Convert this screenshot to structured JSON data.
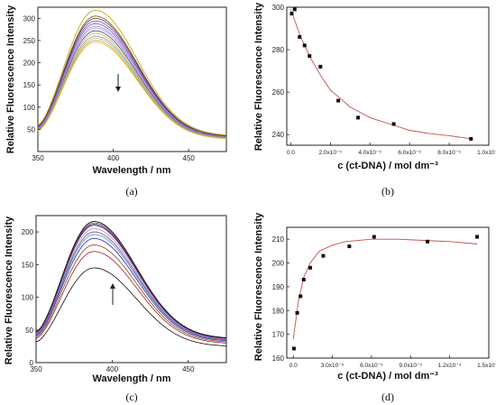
{
  "chart_data": [
    {
      "panel": "(a)",
      "type": "line",
      "xlabel": "Wavelength / nm",
      "ylabel": "Relative Fluorescence Intensity",
      "xlim": [
        350,
        475
      ],
      "ylim": [
        0,
        325
      ],
      "xticks": [
        350,
        400,
        450
      ],
      "yticks": [
        50,
        100,
        150,
        200,
        250,
        300
      ],
      "grid": false,
      "annotation": "arrow pointing down",
      "peak_x": 388,
      "series_peaks": [
        318,
        305,
        300,
        294,
        288,
        282,
        278,
        272,
        266,
        260,
        255,
        250,
        246
      ],
      "series_colors": [
        "#b8a000",
        "#8b4513",
        "#3a3a3a",
        "#7b3fa0",
        "#5a5ad0",
        "#c080c0",
        "#a0a0ff",
        "#404080",
        "#e0b040",
        "#909090",
        "#80c0c0",
        "#d0a020",
        "#f0c040"
      ]
    },
    {
      "panel": "(b)",
      "type": "scatter",
      "xlabel": "c (ct-DNA) / mol dm⁻³",
      "ylabel": "Relative Fluorescence Intensity",
      "xlim": [
        -2e-06,
        0.0001
      ],
      "ylim": [
        235,
        300
      ],
      "xticks": [
        0,
        2e-05,
        4e-05,
        6e-05,
        8e-05,
        0.0001
      ],
      "xtick_labels": [
        "0.0",
        "2.0x10⁻⁵",
        "4.0x10⁻⁵",
        "6.0x10⁻⁵",
        "8.0x10⁻⁵",
        "1.0x10⁻⁴"
      ],
      "yticks": [
        240,
        260,
        280,
        300
      ],
      "grid": false,
      "x": [
        5e-07,
        2e-06,
        4.5e-06,
        7e-06,
        9.5e-06,
        1.5e-05,
        2.4e-05,
        3.4e-05,
        5.2e-05,
        9.1e-05
      ],
      "y": [
        297,
        299,
        286,
        282,
        277,
        272,
        256,
        248,
        245,
        238
      ],
      "fit_x": [
        0,
        5e-06,
        1e-05,
        1.5e-05,
        2e-05,
        3e-05,
        4e-05,
        5e-05,
        6e-05,
        7e-05,
        8e-05,
        9.1e-05
      ],
      "fit_y": [
        299,
        286,
        276,
        268,
        261,
        253,
        248,
        245,
        242,
        240.5,
        239.5,
        238
      ],
      "marker_color": "#111111",
      "fit_color": "#c0504d"
    },
    {
      "panel": "(c)",
      "type": "line",
      "xlabel": "Wavelength / nm",
      "ylabel": "Relative Fluorescence Intensity",
      "xlim": [
        350,
        475
      ],
      "ylim": [
        0,
        225
      ],
      "xticks": [
        350,
        400,
        450
      ],
      "yticks": [
        0,
        50,
        100,
        150,
        200
      ],
      "grid": false,
      "annotation": "arrow pointing up",
      "peak_x": 388,
      "series_peaks": [
        145,
        170,
        180,
        190,
        196,
        200,
        205,
        210,
        212,
        214,
        216
      ],
      "series_colors": [
        "#111111",
        "#a02020",
        "#8b4513",
        "#2020c0",
        "#40a0a0",
        "#7b3fa0",
        "#c080c0",
        "#202060",
        "#3a3a3a",
        "#a040a0",
        "#000000"
      ]
    },
    {
      "panel": "(d)",
      "type": "scatter",
      "xlabel": "c (ct-DNA) / mol dm⁻³",
      "ylabel": "Relative Fluorescence Intensity",
      "xlim": [
        -5e-06,
        0.00015
      ],
      "ylim": [
        160,
        215
      ],
      "xticks": [
        0,
        3e-05,
        6e-05,
        9e-05,
        0.00012,
        0.00015
      ],
      "xtick_labels": [
        "0.0",
        "3.0x10⁻⁵",
        "6.0x10⁻⁵",
        "9.0x10⁻⁵",
        "1.2x10⁻⁴",
        "1.5x10⁻⁴"
      ],
      "yticks": [
        160,
        170,
        180,
        190,
        200,
        210
      ],
      "grid": false,
      "x": [
        5e-07,
        3e-06,
        5.5e-06,
        8e-06,
        1.3e-05,
        2.3e-05,
        4.3e-05,
        6.2e-05,
        0.000103,
        0.000141
      ],
      "y": [
        164,
        179,
        186,
        193,
        198,
        203,
        207,
        211,
        209,
        211
      ],
      "fit_x": [
        0,
        4e-06,
        8e-06,
        1.3e-05,
        2e-05,
        3e-05,
        4e-05,
        6e-05,
        8e-05,
        0.0001,
        0.00012,
        0.000141
      ],
      "fit_y": [
        168,
        184,
        194,
        200,
        205,
        207.5,
        209,
        210,
        210,
        209.5,
        209,
        208
      ],
      "marker_color": "#111111",
      "fit_color": "#c0504d"
    }
  ]
}
